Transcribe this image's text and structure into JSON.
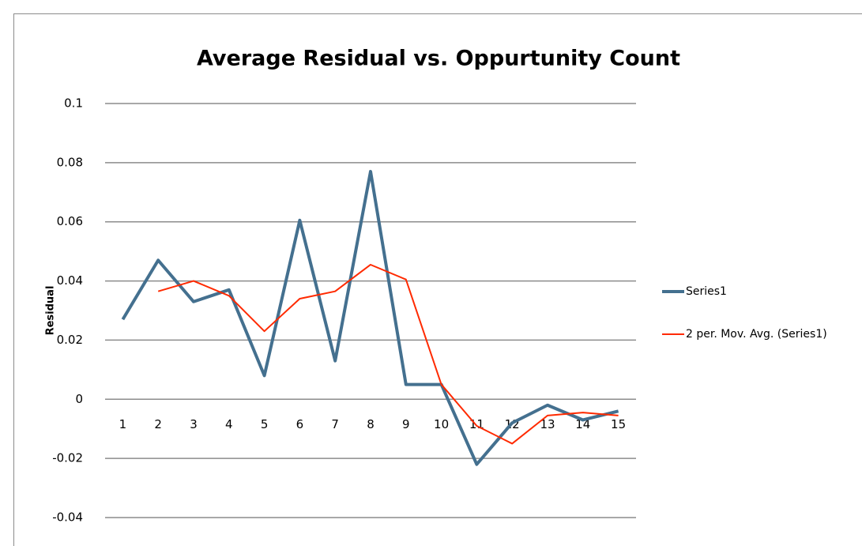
{
  "chart_data": {
    "type": "line",
    "title": "Average Residual vs. Oppurtunity Count",
    "y_label": "Residual",
    "categories": [
      "1",
      "2",
      "3",
      "4",
      "5",
      "6",
      "7",
      "8",
      "9",
      "10",
      "11",
      "12",
      "13",
      "14",
      "15"
    ],
    "series": [
      {
        "name": "Series1",
        "color": "#44708f",
        "values": [
          0.027,
          0.047,
          0.033,
          0.037,
          0.008,
          0.0605,
          0.013,
          0.077,
          0.005,
          0.005,
          -0.022,
          -0.008,
          -0.002,
          -0.007,
          -0.004
        ]
      },
      {
        "name": "2 per. Mov. Avg. (Series1)",
        "color": "#ff2a00",
        "values": [
          null,
          0.0365,
          0.04,
          0.035,
          0.023,
          0.034,
          0.0365,
          0.0455,
          0.0405,
          0.005,
          -0.009,
          -0.015,
          -0.0055,
          -0.0045,
          -0.0055
        ]
      }
    ],
    "ylim": [
      -0.04,
      0.1
    ],
    "yticks": [
      0.1,
      0.08,
      0.06,
      0.04,
      0.02,
      0,
      -0.02,
      -0.04
    ],
    "grid": true,
    "legend": "right"
  }
}
